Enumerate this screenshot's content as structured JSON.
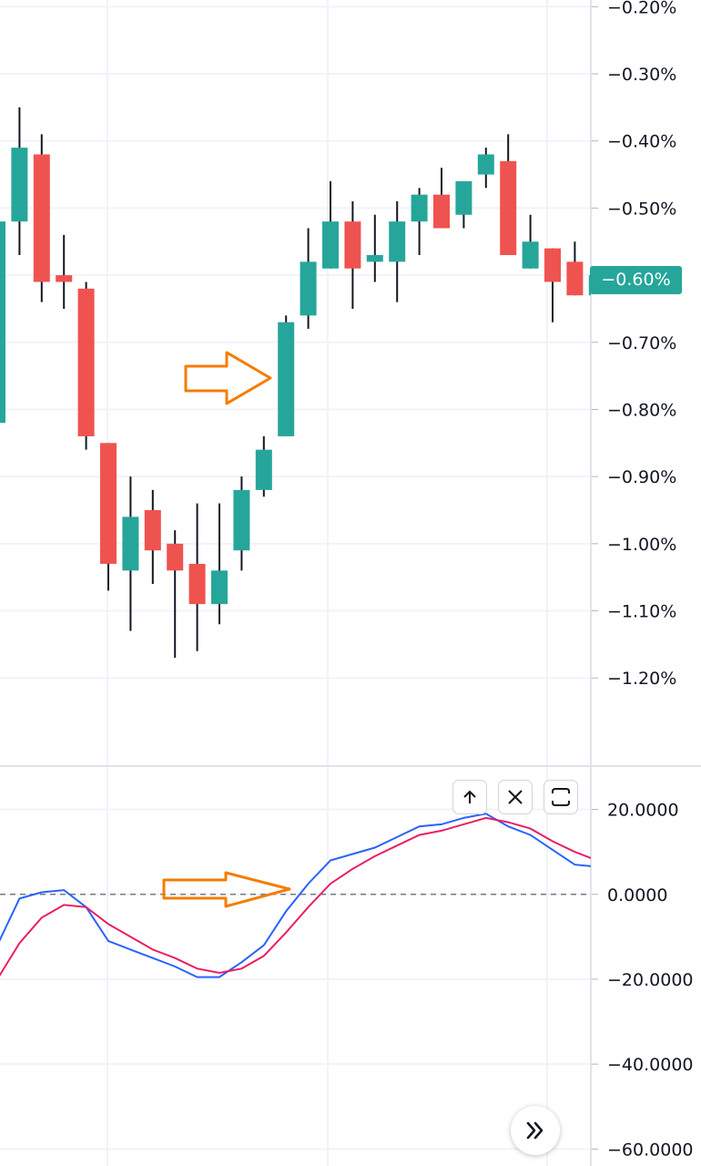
{
  "chart_data": [
    {
      "type": "candlestick",
      "title": "",
      "y_axis": {
        "format": "percent",
        "tick_labels": [
          "−0.20%",
          "−0.30%",
          "−0.40%",
          "−0.50%",
          "−0.60%",
          "−0.70%",
          "−0.80%",
          "−0.90%",
          "−1.00%",
          "−1.10%",
          "−1.20%"
        ],
        "ticks": [
          -0.2,
          -0.3,
          -0.4,
          -0.5,
          -0.6,
          -0.7,
          -0.8,
          -0.9,
          -1.0,
          -1.1,
          -1.2
        ],
        "ylim": [
          -1.33,
          -0.19
        ],
        "position": "right"
      },
      "last_value_label": "−0.60%",
      "colors": {
        "up": "#26a69a",
        "down": "#ef5350",
        "wick": "#131722"
      },
      "candles": [
        {
          "o": -0.82,
          "h": -0.32,
          "l": -0.82,
          "c": -0.52
        },
        {
          "o": -0.52,
          "h": -0.35,
          "l": -0.57,
          "c": -0.41
        },
        {
          "o": -0.42,
          "h": -0.39,
          "l": -0.64,
          "c": -0.61
        },
        {
          "o": -0.6,
          "h": -0.54,
          "l": -0.65,
          "c": -0.61
        },
        {
          "o": -0.62,
          "h": -0.61,
          "l": -0.86,
          "c": -0.84
        },
        {
          "o": -0.85,
          "h": -0.85,
          "l": -1.07,
          "c": -1.03
        },
        {
          "o": -1.04,
          "h": -0.9,
          "l": -1.13,
          "c": -0.96
        },
        {
          "o": -0.95,
          "h": -0.92,
          "l": -1.06,
          "c": -1.01
        },
        {
          "o": -1.0,
          "h": -0.98,
          "l": -1.17,
          "c": -1.04
        },
        {
          "o": -1.03,
          "h": -0.94,
          "l": -1.16,
          "c": -1.09
        },
        {
          "o": -1.09,
          "h": -0.94,
          "l": -1.12,
          "c": -1.04
        },
        {
          "o": -1.01,
          "h": -0.9,
          "l": -1.04,
          "c": -0.92
        },
        {
          "o": -0.92,
          "h": -0.84,
          "l": -0.93,
          "c": -0.86
        },
        {
          "o": -0.84,
          "h": -0.66,
          "l": -0.84,
          "c": -0.67
        },
        {
          "o": -0.66,
          "h": -0.53,
          "l": -0.68,
          "c": -0.58
        },
        {
          "o": -0.59,
          "h": -0.46,
          "l": -0.59,
          "c": -0.52
        },
        {
          "o": -0.52,
          "h": -0.49,
          "l": -0.65,
          "c": -0.59
        },
        {
          "o": -0.58,
          "h": -0.51,
          "l": -0.61,
          "c": -0.57
        },
        {
          "o": -0.58,
          "h": -0.49,
          "l": -0.64,
          "c": -0.52
        },
        {
          "o": -0.52,
          "h": -0.47,
          "l": -0.57,
          "c": -0.48
        },
        {
          "o": -0.48,
          "h": -0.44,
          "l": -0.53,
          "c": -0.53
        },
        {
          "o": -0.51,
          "h": -0.46,
          "l": -0.53,
          "c": -0.46
        },
        {
          "o": -0.45,
          "h": -0.41,
          "l": -0.47,
          "c": -0.42
        },
        {
          "o": -0.43,
          "h": -0.39,
          "l": -0.57,
          "c": -0.57
        },
        {
          "o": -0.59,
          "h": -0.51,
          "l": -0.59,
          "c": -0.55
        },
        {
          "o": -0.56,
          "h": -0.56,
          "l": -0.67,
          "c": -0.61
        },
        {
          "o": -0.58,
          "h": -0.55,
          "l": -0.63,
          "c": -0.63
        },
        {
          "o": -0.63,
          "h": -0.6,
          "l": -0.63,
          "c": -0.6
        }
      ]
    },
    {
      "type": "line",
      "title": "",
      "y_axis": {
        "tick_labels": [
          "20.0000",
          "0.0000",
          "−20.0000",
          "−40.0000",
          "−60.0000"
        ],
        "ticks": [
          20,
          0,
          -20,
          -40,
          -60
        ],
        "ylim": [
          -64,
          30
        ],
        "position": "right"
      },
      "zero_line": true,
      "series": [
        {
          "color": "#2962ff",
          "values": [
            -12,
            -1,
            0.5,
            1,
            -3,
            -11,
            -13,
            -15,
            -17,
            -19.5,
            -19.5,
            -16,
            -12,
            -4,
            2.5,
            8,
            9.5,
            11,
            13.5,
            16,
            16.5,
            18,
            19,
            16,
            14,
            10.5,
            7,
            6.5
          ]
        },
        {
          "color": "#e91e63",
          "values": [
            -20,
            -11.5,
            -5.5,
            -2.5,
            -3,
            -7,
            -10,
            -13,
            -15,
            -17.5,
            -18.5,
            -17.5,
            -14.5,
            -9,
            -3,
            2.5,
            6,
            9,
            11.5,
            14,
            15,
            16.5,
            18,
            17,
            15.5,
            12.5,
            10,
            8
          ]
        }
      ]
    }
  ],
  "annotations": [
    {
      "type": "arrow",
      "color": "#f57c00",
      "pane": "price",
      "direction": "right"
    },
    {
      "type": "arrow",
      "color": "#f57c00",
      "pane": "indicator",
      "direction": "right"
    }
  ],
  "pane_controls": [
    {
      "icon": "arrow-up-icon"
    },
    {
      "icon": "close-icon"
    },
    {
      "icon": "maximize-icon"
    }
  ],
  "scroll_button": {
    "icon": "double-chevron-right-icon"
  }
}
